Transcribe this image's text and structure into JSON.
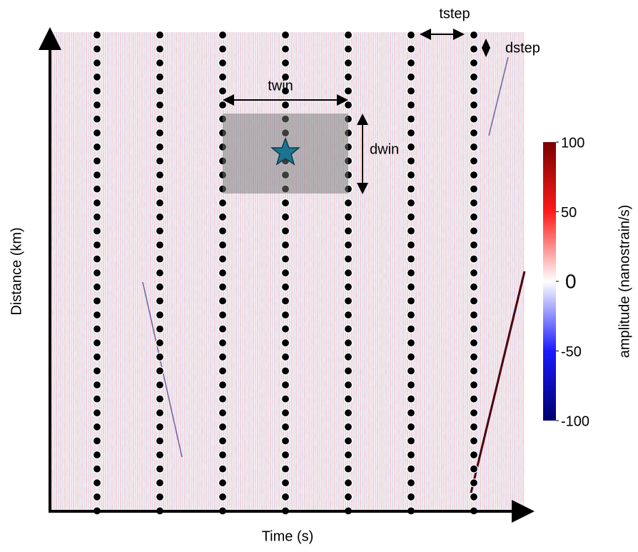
{
  "diagram": {
    "x_axis_label": "Time (s)",
    "y_axis_label": "Distance (km)",
    "twin_label": "twin",
    "dwin_label": "dwin",
    "tstep_label": "tstep",
    "dstep_label": "dstep",
    "colorbar": {
      "label": "amplitude (nanostrain/s)",
      "lim": [
        -100,
        100
      ],
      "ticks": [
        100,
        50,
        0,
        -50,
        -100
      ]
    }
  }
}
